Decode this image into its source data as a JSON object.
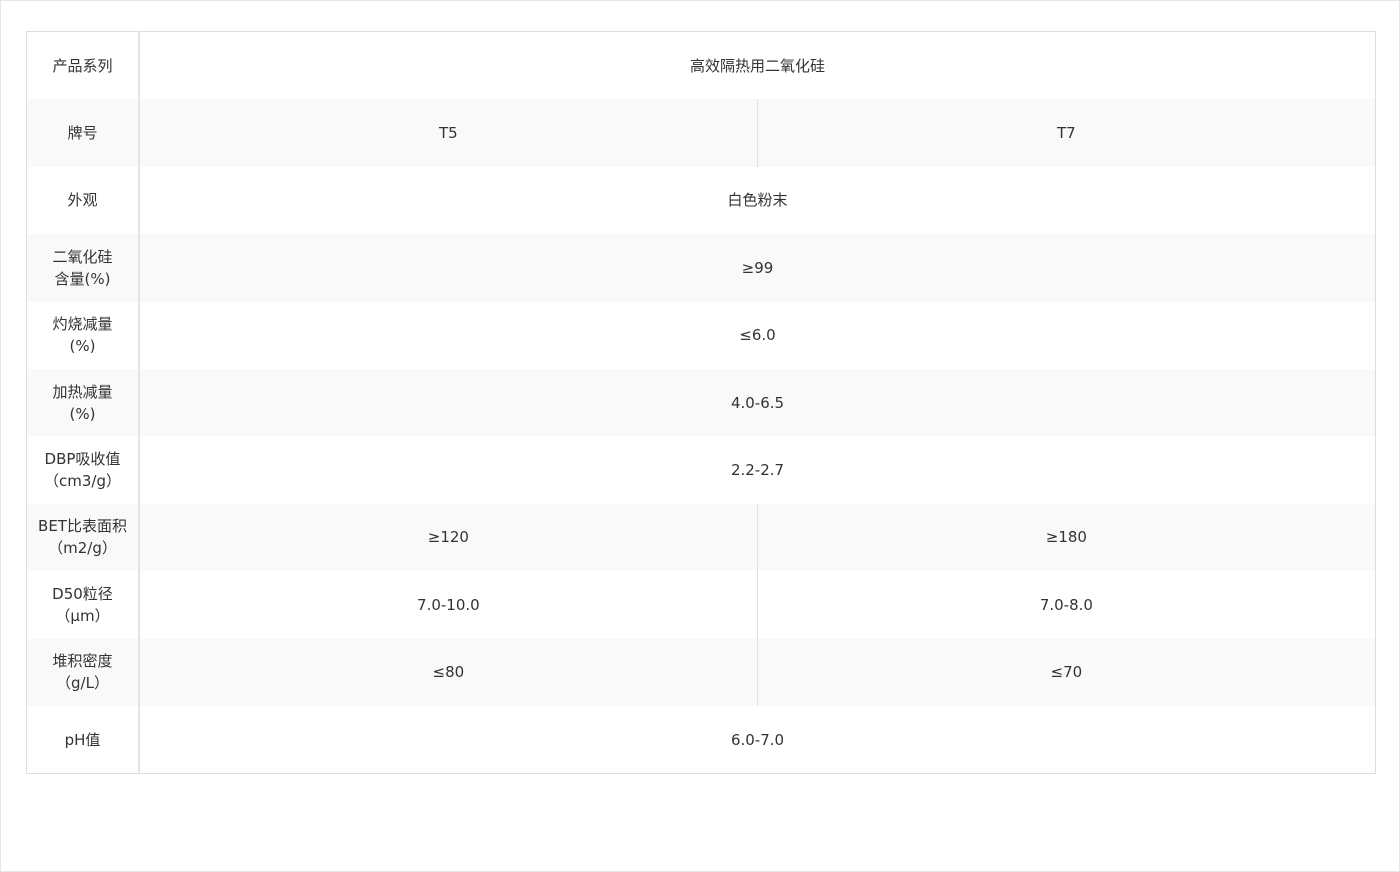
{
  "rows": [
    {
      "label": [
        "产品系列"
      ],
      "values": [
        "高效隔热用二氧化硅"
      ]
    },
    {
      "label": [
        "牌号"
      ],
      "values": [
        "T5",
        "T7"
      ]
    },
    {
      "label": [
        "外观"
      ],
      "values": [
        "白色粉末"
      ]
    },
    {
      "label": [
        "二氧化硅",
        "含量(%)"
      ],
      "values": [
        "≥99"
      ]
    },
    {
      "label": [
        "灼烧减量",
        "(%)"
      ],
      "values": [
        "≤6.0"
      ]
    },
    {
      "label": [
        "加热减量",
        "(%)"
      ],
      "values": [
        "4.0-6.5"
      ]
    },
    {
      "label": [
        "DBP吸收值",
        "（cm3/g）"
      ],
      "values": [
        "2.2-2.7"
      ]
    },
    {
      "label": [
        "BET比表面积",
        "（m2/g）"
      ],
      "values": [
        "≥120",
        "≥180"
      ]
    },
    {
      "label": [
        "D50粒径",
        "（μm）"
      ],
      "values": [
        "7.0-10.0",
        "7.0-8.0"
      ]
    },
    {
      "label": [
        "堆积密度",
        "（g/L）"
      ],
      "values": [
        "≤80",
        "≤70"
      ]
    },
    {
      "label": [
        "pH值"
      ],
      "values": [
        "6.0-7.0"
      ]
    }
  ]
}
